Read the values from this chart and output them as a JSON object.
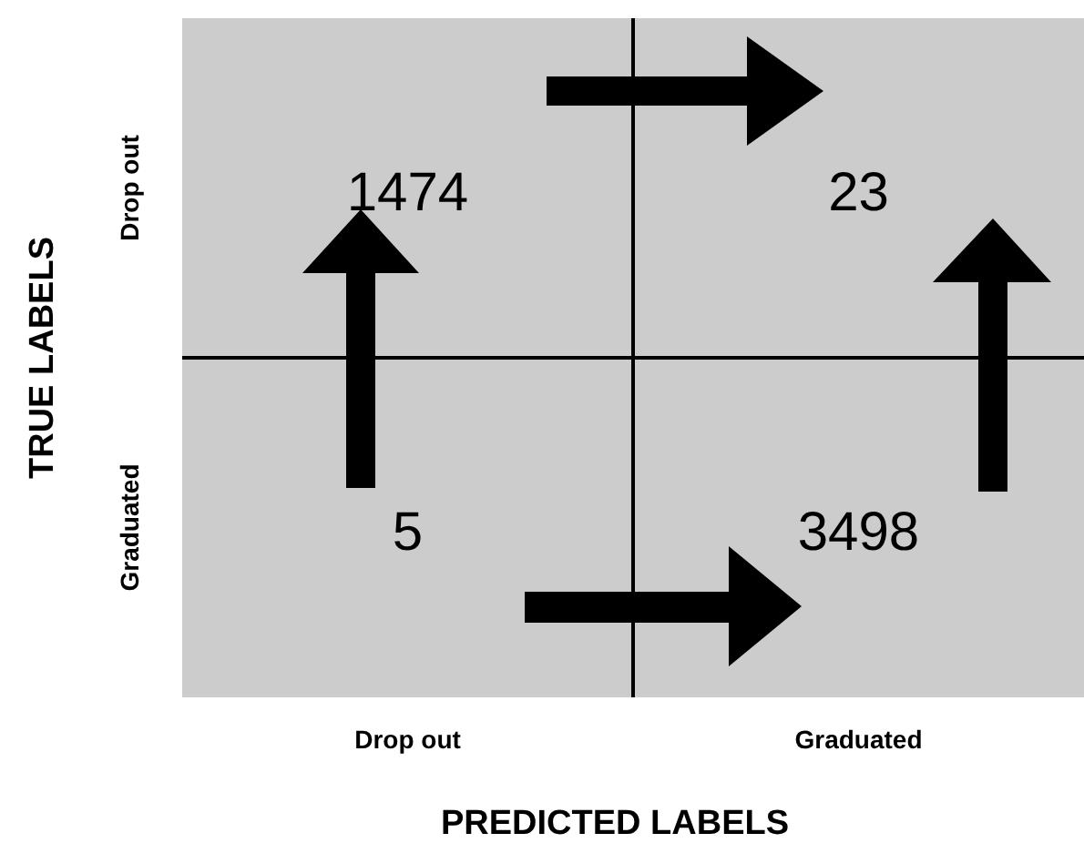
{
  "chart_data": {
    "type": "heatmap",
    "xlabel": "PREDICTED LABELS",
    "ylabel": "TRUE LABELS",
    "categories": [
      "Drop out",
      "Graduated"
    ],
    "y_categories": [
      "Drop out",
      "Graduated"
    ],
    "cells": [
      [
        1474,
        23
      ],
      [
        5,
        3498
      ]
    ],
    "color": "#cccccc",
    "data_labels": true
  }
}
